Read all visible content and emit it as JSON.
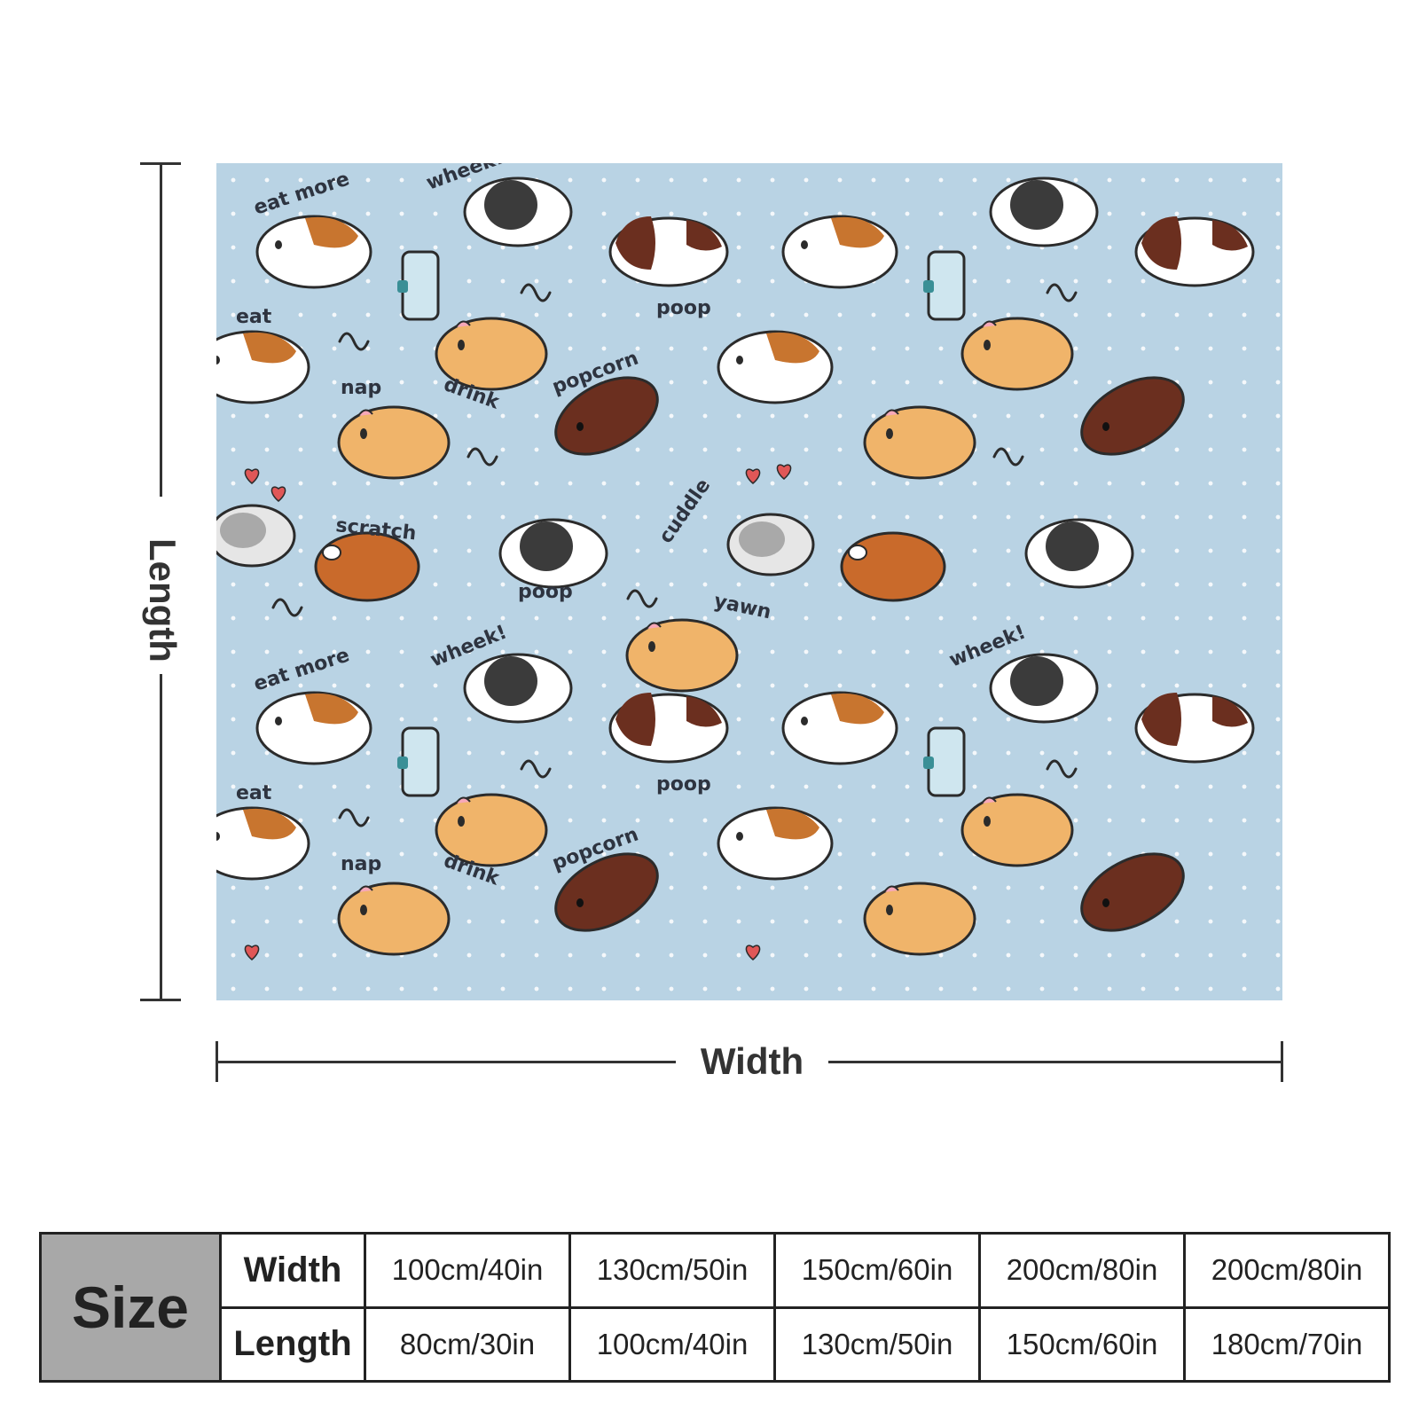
{
  "dimensions": {
    "length_label": "Length",
    "width_label": "Width"
  },
  "pattern": {
    "background_color": "#b9d3e4",
    "words": [
      "eat more",
      "wheek!",
      "poop",
      "eat",
      "nap",
      "drink",
      "popcorn",
      "scratch",
      "cuddle",
      "yawn",
      "wheek!",
      "poop",
      "eat more",
      "wheek!",
      "poop",
      "eat",
      "nap",
      "drink",
      "popcorn"
    ]
  },
  "size_table": {
    "header": "Size",
    "width_label": "Width",
    "length_label": "Length",
    "widths": [
      "100cm/40in",
      "130cm/50in",
      "150cm/60in",
      "200cm/80in",
      "200cm/80in"
    ],
    "lengths": [
      "80cm/30in",
      "100cm/40in",
      "130cm/50in",
      "150cm/60in",
      "180cm/70in"
    ]
  }
}
